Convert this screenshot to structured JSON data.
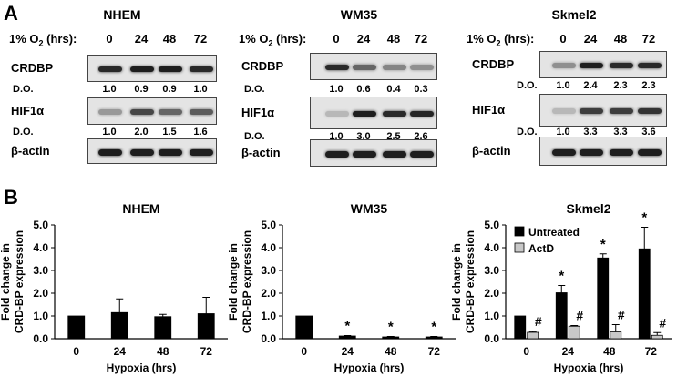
{
  "panel_a": {
    "letter": "A",
    "time_header": "1% O",
    "time_sub": "2",
    "time_unit": "(hrs):",
    "do_label": "D.O.",
    "times": [
      "0",
      "24",
      "48",
      "72"
    ],
    "proteins": {
      "crdbp": "CRDBP",
      "hif": "HIF1α",
      "actin": "β-actin"
    },
    "cells": [
      {
        "name": "NHEM",
        "crdbp_do": [
          "1.0",
          "0.9",
          "0.9",
          "1.0"
        ],
        "hif_do": [
          "1.0",
          "2.0",
          "1.5",
          "1.6"
        ]
      },
      {
        "name": "WM35",
        "crdbp_do": [
          "1.0",
          "0.6",
          "0.4",
          "0.3"
        ],
        "hif_do": [
          "1.0",
          "3.0",
          "2.5",
          "2.6"
        ]
      },
      {
        "name": "Skmel2",
        "crdbp_do": [
          "1.0",
          "2.4",
          "2.3",
          "2.3"
        ],
        "hif_do": [
          "1.0",
          "3.3",
          "3.3",
          "3.6"
        ]
      }
    ]
  },
  "panel_b": {
    "letter": "B",
    "legend": [
      "Untreated",
      "ActD"
    ],
    "series_colors": {
      "untreated": "#000000",
      "actd": "#c8c8c8"
    }
  },
  "chart_data": [
    {
      "type": "bar",
      "title": "NHEM",
      "xlabel": "Hypoxia (hrs)",
      "ylabel": "Fold change in CRD-BP expression",
      "categories": [
        "0",
        "24",
        "48",
        "72"
      ],
      "ylim": [
        0,
        5
      ],
      "yticks": [
        "0.0",
        "1.0",
        "2.0",
        "3.0",
        "4.0",
        "5.0"
      ],
      "series": [
        {
          "values": [
            1.0,
            1.15,
            0.97,
            1.1
          ],
          "errors": [
            0,
            0.6,
            0.1,
            0.72
          ],
          "marks": [
            "",
            "",
            "",
            ""
          ]
        }
      ]
    },
    {
      "type": "bar",
      "title": "WM35",
      "xlabel": "Hypoxia (hrs)",
      "ylabel": "Fold change in CRD-BP expression",
      "categories": [
        "0",
        "24",
        "48",
        "72"
      ],
      "ylim": [
        0,
        5
      ],
      "yticks": [
        "0.0",
        "1.0",
        "2.0",
        "3.0",
        "4.0",
        "5.0"
      ],
      "series": [
        {
          "values": [
            1.0,
            0.12,
            0.08,
            0.08
          ],
          "errors": [
            0,
            0.02,
            0.02,
            0.02
          ],
          "marks": [
            "",
            "*",
            "*",
            "*"
          ]
        }
      ]
    },
    {
      "type": "bar",
      "title": "Skmel2",
      "xlabel": "Hypoxia (hrs)",
      "ylabel": "Fold change in CRD-BP expression",
      "categories": [
        "0",
        "24",
        "48",
        "72"
      ],
      "ylim": [
        0,
        5
      ],
      "yticks": [
        "0.0",
        "1.0",
        "2.0",
        "3.0",
        "4.0",
        "5.0"
      ],
      "legend_position": "top-left",
      "series": [
        {
          "name": "Untreated",
          "values": [
            1.0,
            2.02,
            3.55,
            3.95
          ],
          "errors": [
            0,
            0.32,
            0.18,
            0.95
          ],
          "marks": [
            "",
            "*",
            "*",
            "*"
          ]
        },
        {
          "name": "ActD",
          "values": [
            0.28,
            0.55,
            0.3,
            0.15
          ],
          "errors": [
            0.04,
            0.03,
            0.32,
            0.12
          ],
          "marks": [
            "#",
            "#",
            "#",
            "#"
          ]
        }
      ]
    }
  ]
}
